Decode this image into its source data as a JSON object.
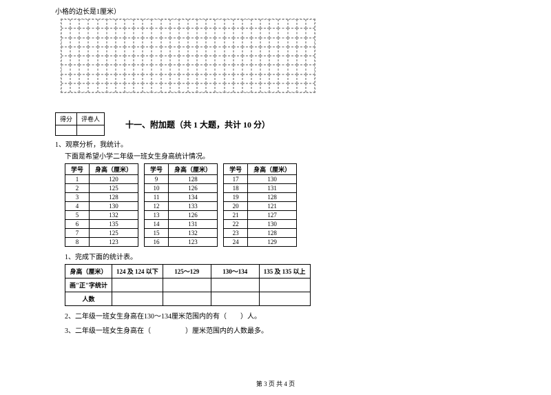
{
  "intro": "小格的边长是1厘米）",
  "scoreTable": {
    "col1": "得分",
    "col2": "评卷人"
  },
  "sectionTitle": "十一、附加题（共 1 大题，共计 10 分）",
  "q1": "1、观察分析，我统计。",
  "q1desc": "下面是希望小学二年级一班女生身高统计情况。",
  "headers": {
    "id": "学号",
    "height": "身高（厘米）"
  },
  "group1": [
    {
      "id": "1",
      "h": "120"
    },
    {
      "id": "2",
      "h": "125"
    },
    {
      "id": "3",
      "h": "128"
    },
    {
      "id": "4",
      "h": "130"
    },
    {
      "id": "5",
      "h": "132"
    },
    {
      "id": "6",
      "h": "135"
    },
    {
      "id": "7",
      "h": "125"
    },
    {
      "id": "8",
      "h": "123"
    }
  ],
  "group2": [
    {
      "id": "9",
      "h": "128"
    },
    {
      "id": "10",
      "h": "126"
    },
    {
      "id": "11",
      "h": "134"
    },
    {
      "id": "12",
      "h": "133"
    },
    {
      "id": "13",
      "h": "126"
    },
    {
      "id": "14",
      "h": "131"
    },
    {
      "id": "15",
      "h": "132"
    },
    {
      "id": "16",
      "h": "123"
    }
  ],
  "group3": [
    {
      "id": "17",
      "h": "130"
    },
    {
      "id": "18",
      "h": "131"
    },
    {
      "id": "19",
      "h": "128"
    },
    {
      "id": "20",
      "h": "121"
    },
    {
      "id": "21",
      "h": "127"
    },
    {
      "id": "22",
      "h": "130"
    },
    {
      "id": "23",
      "h": "128"
    },
    {
      "id": "24",
      "h": "129"
    }
  ],
  "sub1": "1、完成下面的统计表。",
  "summaryHeaders": {
    "c0": "身高（厘米）",
    "c1": "124 及 124 以下",
    "c2": "125～129",
    "c3": "130～134",
    "c4": "135 及 135 以上"
  },
  "summaryRow1": "画\"正\"字统计",
  "summaryRow2": "人数",
  "sub2": "2、二年级一班女生身高在130～134厘米范围内的有（　　）人。",
  "sub3": "3、二年级一班女生身高在（　　　　　）厘米范围内的人数最多。",
  "footer": "第 3 页 共 4 页"
}
